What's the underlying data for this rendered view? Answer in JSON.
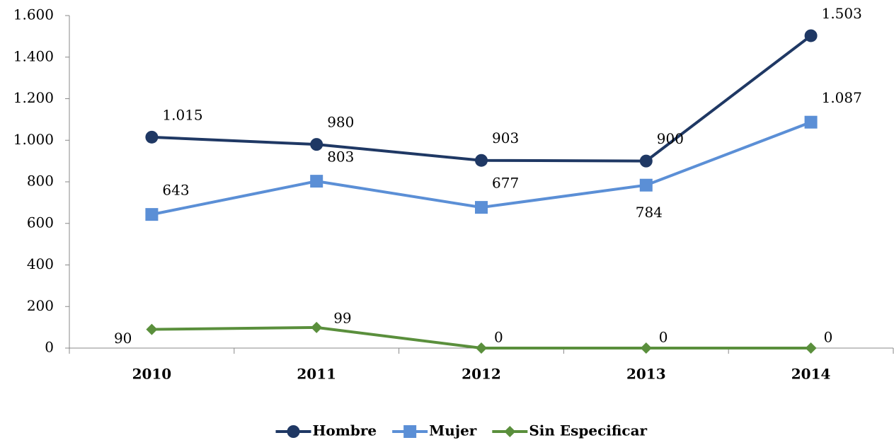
{
  "chart_data": {
    "type": "line",
    "categories": [
      "2010",
      "2011",
      "2012",
      "2013",
      "2014"
    ],
    "series": [
      {
        "name": "Hombre",
        "color": "#1f3864",
        "marker": "circle",
        "values": [
          1015,
          980,
          903,
          900,
          1503
        ],
        "value_labels": [
          "1.015",
          "980",
          "903",
          "900",
          "1.503"
        ]
      },
      {
        "name": "Mujer",
        "color": "#5b8fd6",
        "marker": "square",
        "values": [
          643,
          803,
          677,
          784,
          1087
        ],
        "value_labels": [
          "643",
          "803",
          "677",
          "784",
          "1.087"
        ]
      },
      {
        "name": "Sin Especificar",
        "color": "#5a8f3c",
        "marker": "diamond",
        "values": [
          90,
          99,
          0,
          0,
          0
        ]
      }
    ],
    "ylim": [
      0,
      1600
    ],
    "yticks": [
      0,
      200,
      400,
      600,
      800,
      {
        "value": 1000,
        "label": "1.000"
      },
      {
        "value": 1200,
        "label": "1.200"
      },
      {
        "value": 1400,
        "label": "1.400"
      },
      {
        "value": 1600,
        "label": "1.600"
      }
    ],
    "legend": "bottom"
  }
}
